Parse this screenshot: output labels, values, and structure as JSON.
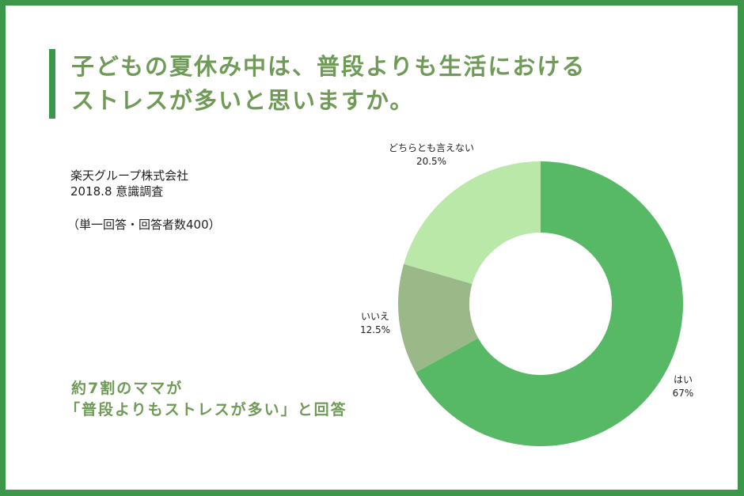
{
  "title": {
    "line1": "子どもの夏休み中は、普段よりも生活における",
    "line2": "ストレスが多いと思いますか。"
  },
  "source": {
    "company": "楽天グループ株式会社",
    "survey": "2018.8 意識調査",
    "note": "（単一回答・回答者数400）"
  },
  "highlight": {
    "line1": "約7割のママが",
    "line2": "「普段よりもストレスが多い」と回答"
  },
  "colors": {
    "frame": "#3c974b",
    "title": "#6f9a57",
    "yes": "#57b866",
    "no": "#9bb888",
    "neutral": "#b9e8a9"
  },
  "chart_data": {
    "type": "pie",
    "variant": "donut",
    "title": "子どもの夏休み中は、普段よりも生活におけるストレスが多いと思いますか。",
    "categories": [
      "はい",
      "いいえ",
      "どちらとも言えない"
    ],
    "values": [
      67,
      12.5,
      20.5
    ],
    "unit": "%",
    "labels": [
      {
        "name": "はい",
        "value": "67%"
      },
      {
        "name": "いいえ",
        "value": "12.5%"
      },
      {
        "name": "どちらとも言えない",
        "value": "20.5%"
      }
    ],
    "colors": [
      "#57b866",
      "#9bb888",
      "#b9e8a9"
    ],
    "start_angle": "12 o'clock, clockwise",
    "legend": "none (direct labels)"
  }
}
